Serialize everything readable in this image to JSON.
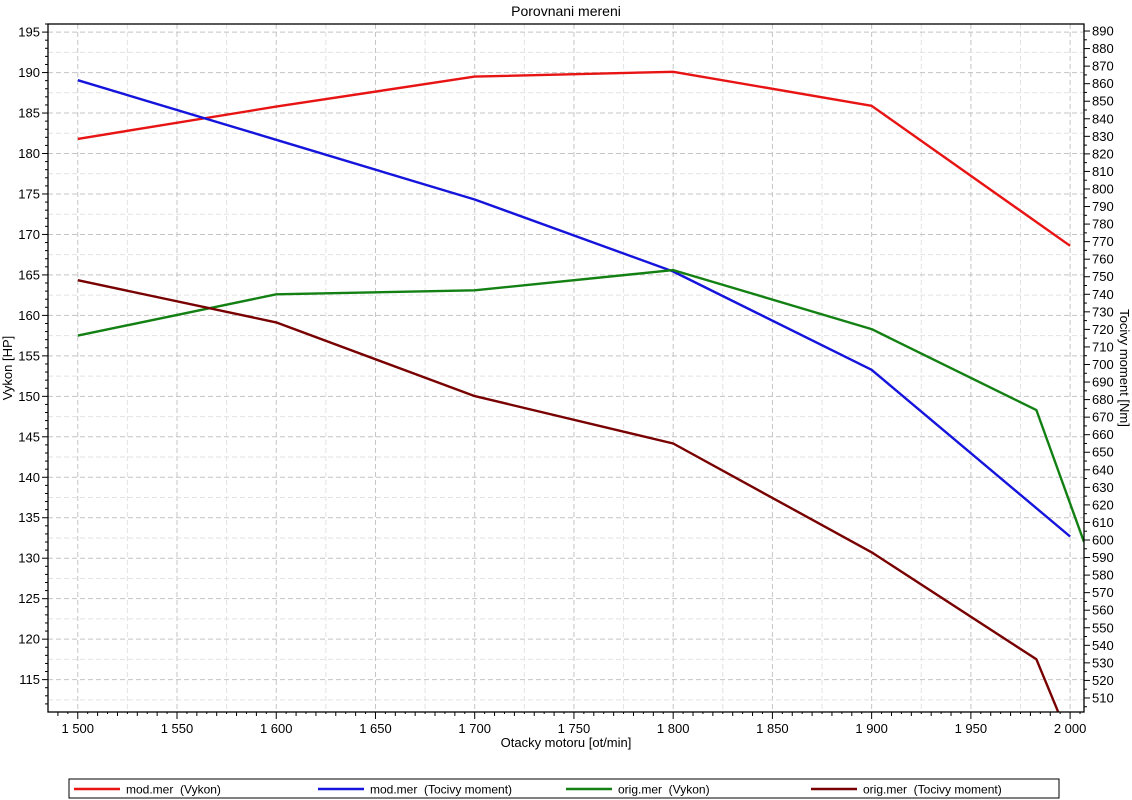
{
  "chart_data": {
    "type": "line",
    "title": "Porovnani mereni",
    "xlabel": "Otacky motoru [ot/min]",
    "ylabel": "Vykon [HP]",
    "y2label": "Tocivy moment [Nm]",
    "xlim": [
      1485,
      2007
    ],
    "ylim": [
      111,
      196
    ],
    "y2lim": [
      502,
      894
    ],
    "x_ticks": [
      1500,
      1550,
      1600,
      1650,
      1700,
      1750,
      1800,
      1850,
      1900,
      1950,
      2000
    ],
    "x_tick_labels": [
      "1 500",
      "1 550",
      "1 600",
      "1 650",
      "1 700",
      "1 750",
      "1 800",
      "1 850",
      "1 900",
      "1 950",
      "2 000"
    ],
    "y_ticks": [
      115,
      120,
      125,
      130,
      135,
      140,
      145,
      150,
      155,
      160,
      165,
      170,
      175,
      180,
      185,
      190,
      195
    ],
    "y2_ticks": [
      510,
      520,
      530,
      540,
      550,
      560,
      570,
      580,
      590,
      600,
      610,
      620,
      630,
      640,
      650,
      660,
      670,
      680,
      690,
      700,
      710,
      720,
      730,
      740,
      750,
      760,
      770,
      780,
      790,
      800,
      810,
      820,
      830,
      840,
      850,
      860,
      870,
      880,
      890
    ],
    "grid": true,
    "legend_position": "bottom",
    "series": [
      {
        "name": "mod.mer  (Vykon)",
        "axis": "left",
        "color": "#e81414",
        "x": [
          1500,
          1600,
          1700,
          1800,
          1900,
          2000
        ],
        "y": [
          181.8,
          185.8,
          189.5,
          190.1,
          185.9,
          168.6
        ]
      },
      {
        "name": "mod.mer  (Tocivy moment)",
        "axis": "right",
        "color": "#1414dc",
        "x": [
          1500,
          1600,
          1700,
          1800,
          1900,
          2000
        ],
        "y": [
          862,
          828,
          794,
          753,
          697,
          602
        ]
      },
      {
        "name": "orig.mer  (Vykon)",
        "axis": "left",
        "color": "#138013",
        "x": [
          1500,
          1600,
          1700,
          1800,
          1900,
          1983,
          2007
        ],
        "y": [
          157.5,
          162.6,
          163.1,
          165.6,
          158.3,
          148.3,
          132.0
        ]
      },
      {
        "name": "orig.mer  (Tocivy moment)",
        "axis": "right",
        "color": "#780000",
        "x": [
          1500,
          1600,
          1700,
          1800,
          1900,
          1983,
          1994
        ],
        "y": [
          748,
          724,
          682,
          655,
          593,
          532,
          502
        ]
      }
    ]
  }
}
